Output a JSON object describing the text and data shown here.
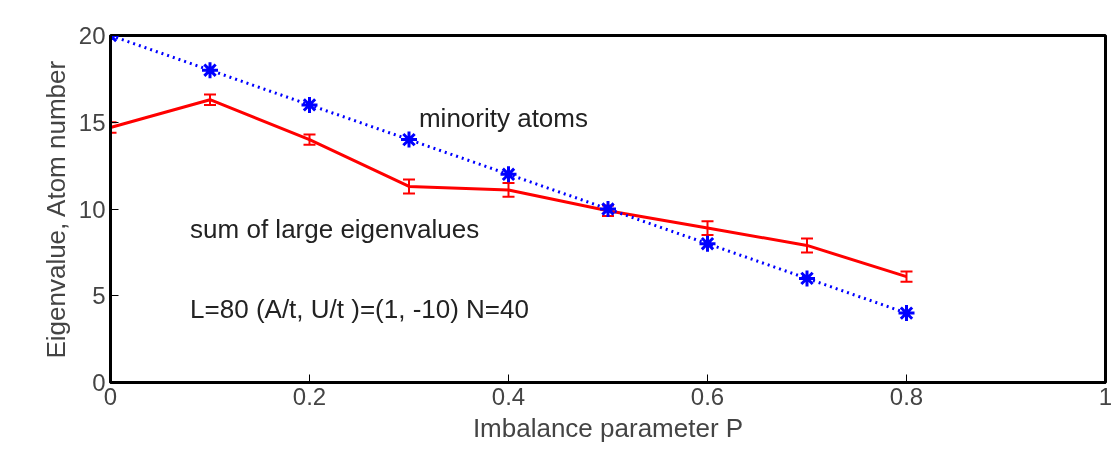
{
  "chart_data": {
    "type": "line",
    "xlabel": "Imbalance parameter P",
    "ylabel": "Eigenvalue, Atom number",
    "x": [
      0,
      0.1,
      0.2,
      0.3,
      0.4,
      0.5,
      0.6,
      0.7,
      0.8
    ],
    "series": [
      {
        "name": "sum of large eigenvalues",
        "color": "#ff0000",
        "values": [
          14.7,
          16.3,
          14.0,
          11.3,
          11.1,
          9.9,
          8.9,
          7.9,
          6.1
        ],
        "errors": [
          0.3,
          0.3,
          0.3,
          0.4,
          0.4,
          0.3,
          0.4,
          0.4,
          0.3
        ],
        "marker": "none",
        "line_style": "solid"
      },
      {
        "name": "minority atoms",
        "color": "#0000ff",
        "values": [
          20,
          18,
          16,
          14,
          12,
          10,
          8,
          6,
          4
        ],
        "marker": "cross",
        "line_style": "dotted"
      }
    ],
    "xlim": [
      0,
      1
    ],
    "ylim": [
      0,
      20
    ],
    "xticks": [
      0,
      0.2,
      0.4,
      0.6,
      0.8,
      1
    ],
    "yticks": [
      0,
      5,
      10,
      15,
      20
    ],
    "grid": false,
    "annotations": [
      "L=80 (A/t, U/t )=(1, -10) N=40"
    ]
  }
}
